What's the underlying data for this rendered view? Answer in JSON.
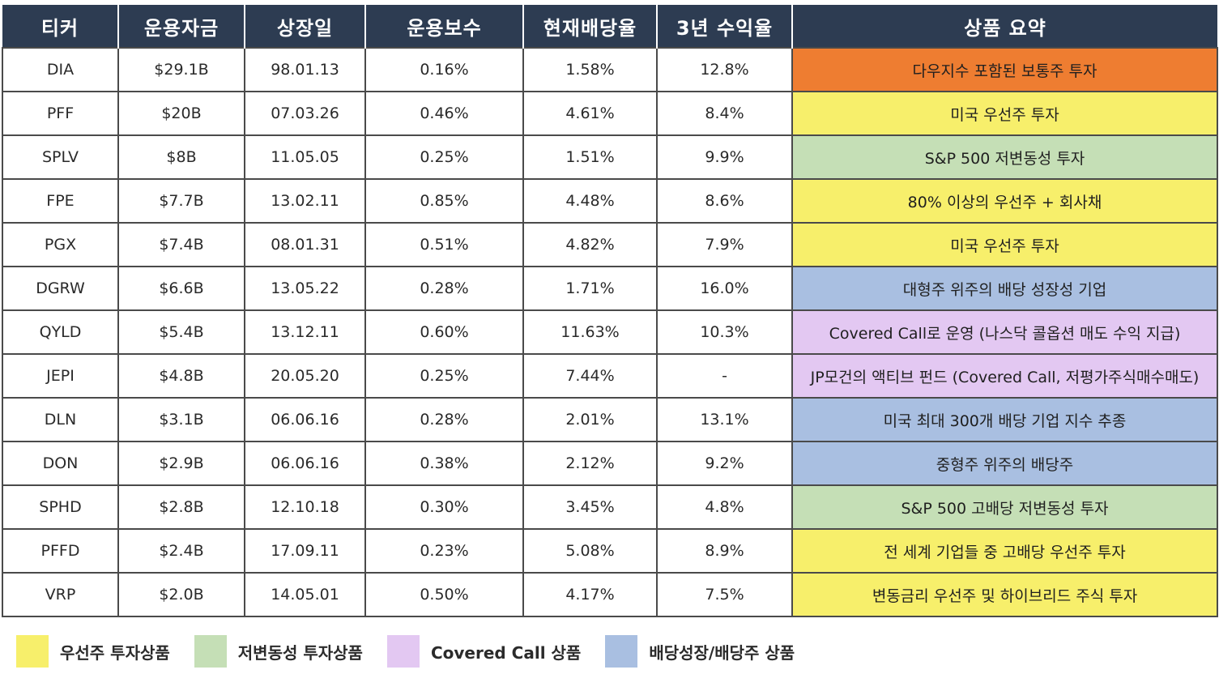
{
  "table": {
    "headers": [
      "티커",
      "운용자금",
      "상장일",
      "운용보수",
      "현재배당율",
      "3년 수익율",
      "상품 요약"
    ],
    "rows": [
      {
        "ticker": "DIA",
        "aum": "$29.1B",
        "listed": "98.01.13",
        "fee": "0.16%",
        "yield": "1.58%",
        "return3y": "12.8%",
        "summary": "다우지수 포함된 보통주 투자",
        "color": "#ee7d31"
      },
      {
        "ticker": "PFF",
        "aum": "$20B",
        "listed": "07.03.26",
        "fee": "0.46%",
        "yield": "4.61%",
        "return3y": "8.4%",
        "summary": "미국 우선주 투자",
        "color": "#f7ef6b"
      },
      {
        "ticker": "SPLV",
        "aum": "$8B",
        "listed": "11.05.05",
        "fee": "0.25%",
        "yield": "1.51%",
        "return3y": "9.9%",
        "summary": "S&P 500 저변동성 투자",
        "color": "#c5dfb6"
      },
      {
        "ticker": "FPE",
        "aum": "$7.7B",
        "listed": "13.02.11",
        "fee": "0.85%",
        "yield": "4.48%",
        "return3y": "8.6%",
        "summary": "80% 이상의 우선주 + 회사채",
        "color": "#f7ef6b"
      },
      {
        "ticker": "PGX",
        "aum": "$7.4B",
        "listed": "08.01.31",
        "fee": "0.51%",
        "yield": "4.82%",
        "return3y": "7.9%",
        "summary": "미국 우선주 투자",
        "color": "#f7ef6b"
      },
      {
        "ticker": "DGRW",
        "aum": "$6.6B",
        "listed": "13.05.22",
        "fee": "0.28%",
        "yield": "1.71%",
        "return3y": "16.0%",
        "summary": "대형주 위주의 배당 성장성 기업",
        "color": "#a9bfe1"
      },
      {
        "ticker": "QYLD",
        "aum": "$5.4B",
        "listed": "13.12.11",
        "fee": "0.60%",
        "yield": "11.63%",
        "return3y": "10.3%",
        "summary": "Covered Call로 운영 (나스닥 콜옵션 매도 수익 지급)",
        "color": "#e3c8f2"
      },
      {
        "ticker": "JEPI",
        "aum": "$4.8B",
        "listed": "20.05.20",
        "fee": "0.25%",
        "yield": "7.44%",
        "return3y": "-",
        "summary": "JP모건의 액티브 펀드 (Covered Call, 저평가주식매수매도)",
        "color": "#e3c8f2"
      },
      {
        "ticker": "DLN",
        "aum": "$3.1B",
        "listed": "06.06.16",
        "fee": "0.28%",
        "yield": "2.01%",
        "return3y": "13.1%",
        "summary": "미국 최대 300개 배당 기업 지수 추종",
        "color": "#a9bfe1"
      },
      {
        "ticker": "DON",
        "aum": "$2.9B",
        "listed": "06.06.16",
        "fee": "0.38%",
        "yield": "2.12%",
        "return3y": "9.2%",
        "summary": "중형주 위주의 배당주",
        "color": "#a9bfe1"
      },
      {
        "ticker": "SPHD",
        "aum": "$2.8B",
        "listed": "12.10.18",
        "fee": "0.30%",
        "yield": "3.45%",
        "return3y": "4.8%",
        "summary": "S&P 500 고배당 저변동성 투자",
        "color": "#c5dfb6"
      },
      {
        "ticker": "PFFD",
        "aum": "$2.4B",
        "listed": "17.09.11",
        "fee": "0.23%",
        "yield": "5.08%",
        "return3y": "8.9%",
        "summary": "전 세계 기업들 중 고배당 우선주 투자",
        "color": "#f7ef6b"
      },
      {
        "ticker": "VRP",
        "aum": "$2.0B",
        "listed": "14.05.01",
        "fee": "0.50%",
        "yield": "4.17%",
        "return3y": "7.5%",
        "summary": "변동금리 우선주 및 하이브리드 주식 투자",
        "color": "#f7ef6b"
      }
    ]
  },
  "legend": [
    {
      "label": "우선주 투자상품",
      "color": "#f7ef6b"
    },
    {
      "label": "저변동성 투자상품",
      "color": "#c5dfb6"
    },
    {
      "label": "Covered Call 상품",
      "color": "#e3c8f2"
    },
    {
      "label": "배당성장/배당주 상품",
      "color": "#a9bfe1"
    }
  ]
}
